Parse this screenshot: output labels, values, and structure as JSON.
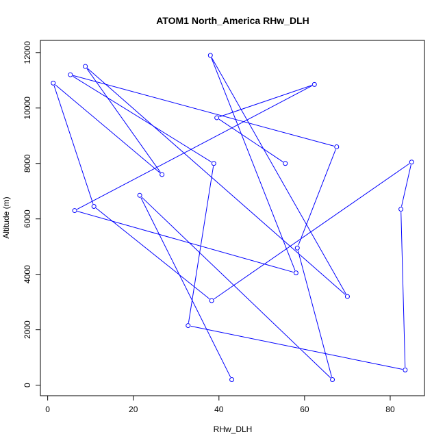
{
  "chart_data": {
    "type": "line",
    "title": "ATOM1 North_America RHw_DLH",
    "xlabel": "RHw_DLH",
    "ylabel": "Altitude (m)",
    "xlim": [
      -1.7,
      88
    ],
    "ylim": [
      -380,
      12440
    ],
    "xticks": [
      0,
      20,
      40,
      60,
      80
    ],
    "yticks": [
      0,
      2000,
      4000,
      6000,
      8000,
      10000,
      12000
    ],
    "grid": false,
    "series": [
      {
        "color": "#0000ff",
        "points": [
          {
            "x": 43.0,
            "y": 200
          },
          {
            "x": 21.5,
            "y": 6850
          },
          {
            "x": 66.5,
            "y": 200
          },
          {
            "x": 58.3,
            "y": 4950
          },
          {
            "x": 67.5,
            "y": 8600
          },
          {
            "x": 5.3,
            "y": 11200
          },
          {
            "x": 38.8,
            "y": 8000
          },
          {
            "x": 32.8,
            "y": 2150
          },
          {
            "x": 83.5,
            "y": 550
          },
          {
            "x": 82.5,
            "y": 6350
          },
          {
            "x": 85.0,
            "y": 8050
          },
          {
            "x": 38.3,
            "y": 3050
          },
          {
            "x": 10.8,
            "y": 6450
          },
          {
            "x": 1.3,
            "y": 10900
          },
          {
            "x": 26.7,
            "y": 7600
          },
          {
            "x": 8.8,
            "y": 11500
          },
          {
            "x": 70.0,
            "y": 3200
          },
          {
            "x": 38.0,
            "y": 11900
          },
          {
            "x": 58.0,
            "y": 4050
          },
          {
            "x": 6.3,
            "y": 6300
          },
          {
            "x": 62.3,
            "y": 10850
          },
          {
            "x": 39.5,
            "y": 9650
          },
          {
            "x": 55.5,
            "y": 8000
          }
        ]
      }
    ]
  }
}
